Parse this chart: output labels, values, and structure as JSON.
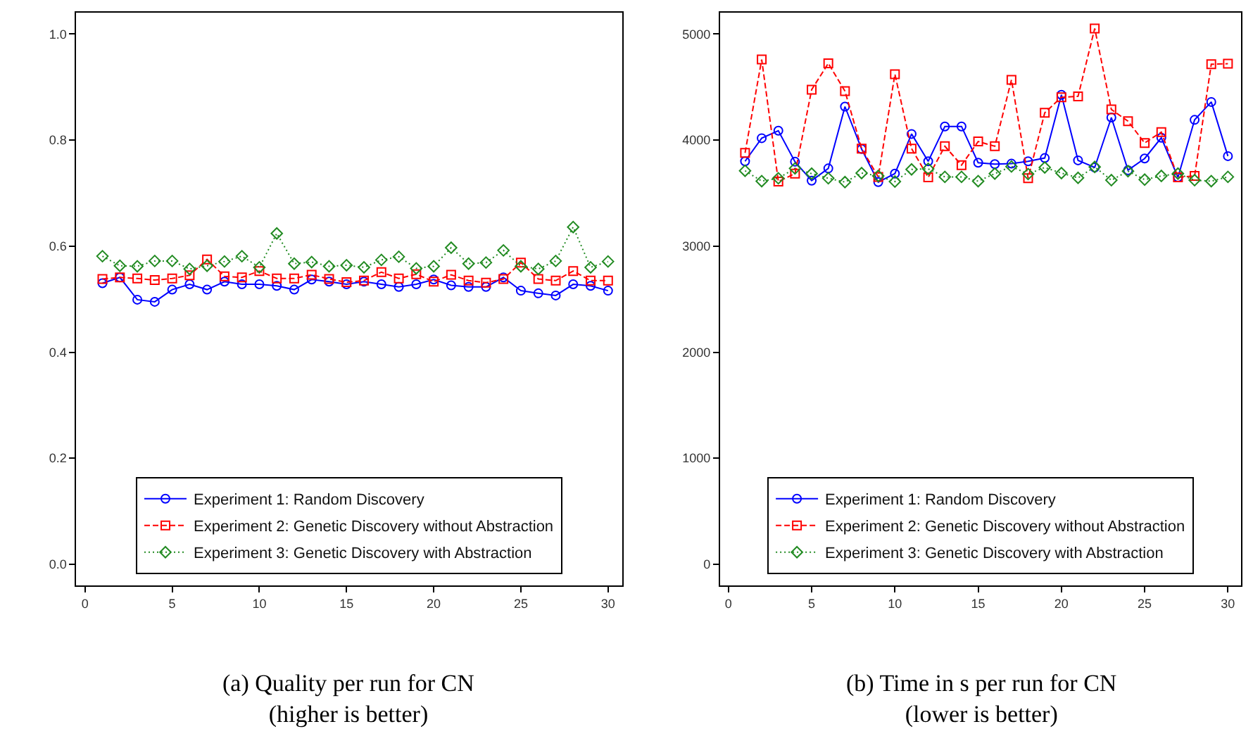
{
  "chart_data": [
    {
      "type": "line",
      "title": "(a) Quality per run for CN\n(higher is better)",
      "x": [
        1,
        2,
        3,
        4,
        5,
        6,
        7,
        8,
        9,
        10,
        11,
        12,
        13,
        14,
        15,
        16,
        17,
        18,
        19,
        20,
        21,
        22,
        23,
        24,
        25,
        26,
        27,
        28,
        29,
        30
      ],
      "xlim": [
        -0.5,
        30.8
      ],
      "xticks": [
        0,
        5,
        10,
        15,
        20,
        25,
        30
      ],
      "ylim": [
        -0.04,
        1.04
      ],
      "yticks": [
        {
          "value": 0,
          "label": "0.0"
        },
        0.2,
        0.4,
        0.6,
        0.8,
        {
          "value": 1,
          "label": "1.0"
        }
      ],
      "legend": "bottom",
      "series": [
        {
          "name": "Experiment 1: Random Discovery",
          "color": "#0000ff",
          "marker": "circle",
          "line_style": "solid",
          "values": [
            0.53,
            0.541,
            0.499,
            0.495,
            0.518,
            0.528,
            0.518,
            0.533,
            0.528,
            0.528,
            0.525,
            0.518,
            0.537,
            0.533,
            0.528,
            0.533,
            0.528,
            0.523,
            0.528,
            0.537,
            0.526,
            0.523,
            0.523,
            0.541,
            0.516,
            0.511,
            0.507,
            0.528,
            0.525,
            0.516
          ]
        },
        {
          "name": "Experiment 2: Genetic Discovery without Abstraction",
          "color": "#ff0000",
          "marker": "square",
          "line_style": "dashed",
          "values": [
            0.538,
            0.541,
            0.539,
            0.536,
            0.539,
            0.545,
            0.575,
            0.543,
            0.541,
            0.553,
            0.539,
            0.539,
            0.546,
            0.538,
            0.532,
            0.535,
            0.551,
            0.539,
            0.547,
            0.533,
            0.546,
            0.535,
            0.531,
            0.538,
            0.569,
            0.538,
            0.535,
            0.553,
            0.535,
            0.535
          ]
        },
        {
          "name": "Experiment 3: Genetic Discovery with Abstraction",
          "color": "#228b22",
          "marker": "diamond",
          "line_style": "dotted",
          "values": [
            0.581,
            0.563,
            0.562,
            0.572,
            0.572,
            0.557,
            0.563,
            0.571,
            0.581,
            0.56,
            0.624,
            0.567,
            0.57,
            0.562,
            0.564,
            0.56,
            0.574,
            0.58,
            0.558,
            0.562,
            0.597,
            0.567,
            0.569,
            0.592,
            0.562,
            0.557,
            0.572,
            0.636,
            0.56,
            0.571
          ]
        }
      ]
    },
    {
      "type": "line",
      "title": "(b) Time in s per run for CN\n(lower is better)",
      "x": [
        1,
        2,
        3,
        4,
        5,
        6,
        7,
        8,
        9,
        10,
        11,
        12,
        13,
        14,
        15,
        16,
        17,
        18,
        19,
        20,
        21,
        22,
        23,
        24,
        25,
        26,
        27,
        28,
        29,
        30
      ],
      "xlim": [
        -0.5,
        30.8
      ],
      "xticks": [
        0,
        5,
        10,
        15,
        20,
        25,
        30
      ],
      "ylim": [
        -200,
        5200
      ],
      "yticks": [
        0,
        1000,
        2000,
        3000,
        4000,
        5000
      ],
      "legend": "bottom",
      "series": [
        {
          "name": "Experiment 1: Random Discovery",
          "color": "#0000ff",
          "marker": "circle",
          "line_style": "solid",
          "values": [
            3800,
            4018,
            4089,
            3796,
            3618,
            3733,
            4316,
            3916,
            3604,
            3684,
            4058,
            3800,
            4129,
            4129,
            3787,
            3773,
            3778,
            3800,
            3831,
            4427,
            3809,
            3742,
            4213,
            3716,
            3827,
            4022,
            3649,
            4191,
            4360,
            3849
          ]
        },
        {
          "name": "Experiment 2: Genetic Discovery without Abstraction",
          "color": "#ff0000",
          "marker": "square",
          "line_style": "dashed",
          "values": [
            3880,
            4760,
            3609,
            3684,
            4476,
            4724,
            4462,
            3920,
            3653,
            4622,
            3920,
            3649,
            3942,
            3764,
            3987,
            3942,
            4569,
            3640,
            4258,
            4404,
            4413,
            5053,
            4289,
            4178,
            3973,
            4076,
            3649,
            3662,
            4716,
            4720
          ]
        },
        {
          "name": "Experiment 3: Genetic Discovery with Abstraction",
          "color": "#228b22",
          "marker": "diamond",
          "line_style": "dotted",
          "values": [
            3711,
            3613,
            3640,
            3733,
            3684,
            3640,
            3604,
            3689,
            3662,
            3609,
            3724,
            3729,
            3653,
            3653,
            3613,
            3684,
            3751,
            3680,
            3742,
            3689,
            3644,
            3747,
            3622,
            3707,
            3627,
            3662,
            3684,
            3622,
            3613,
            3653
          ]
        }
      ]
    }
  ]
}
